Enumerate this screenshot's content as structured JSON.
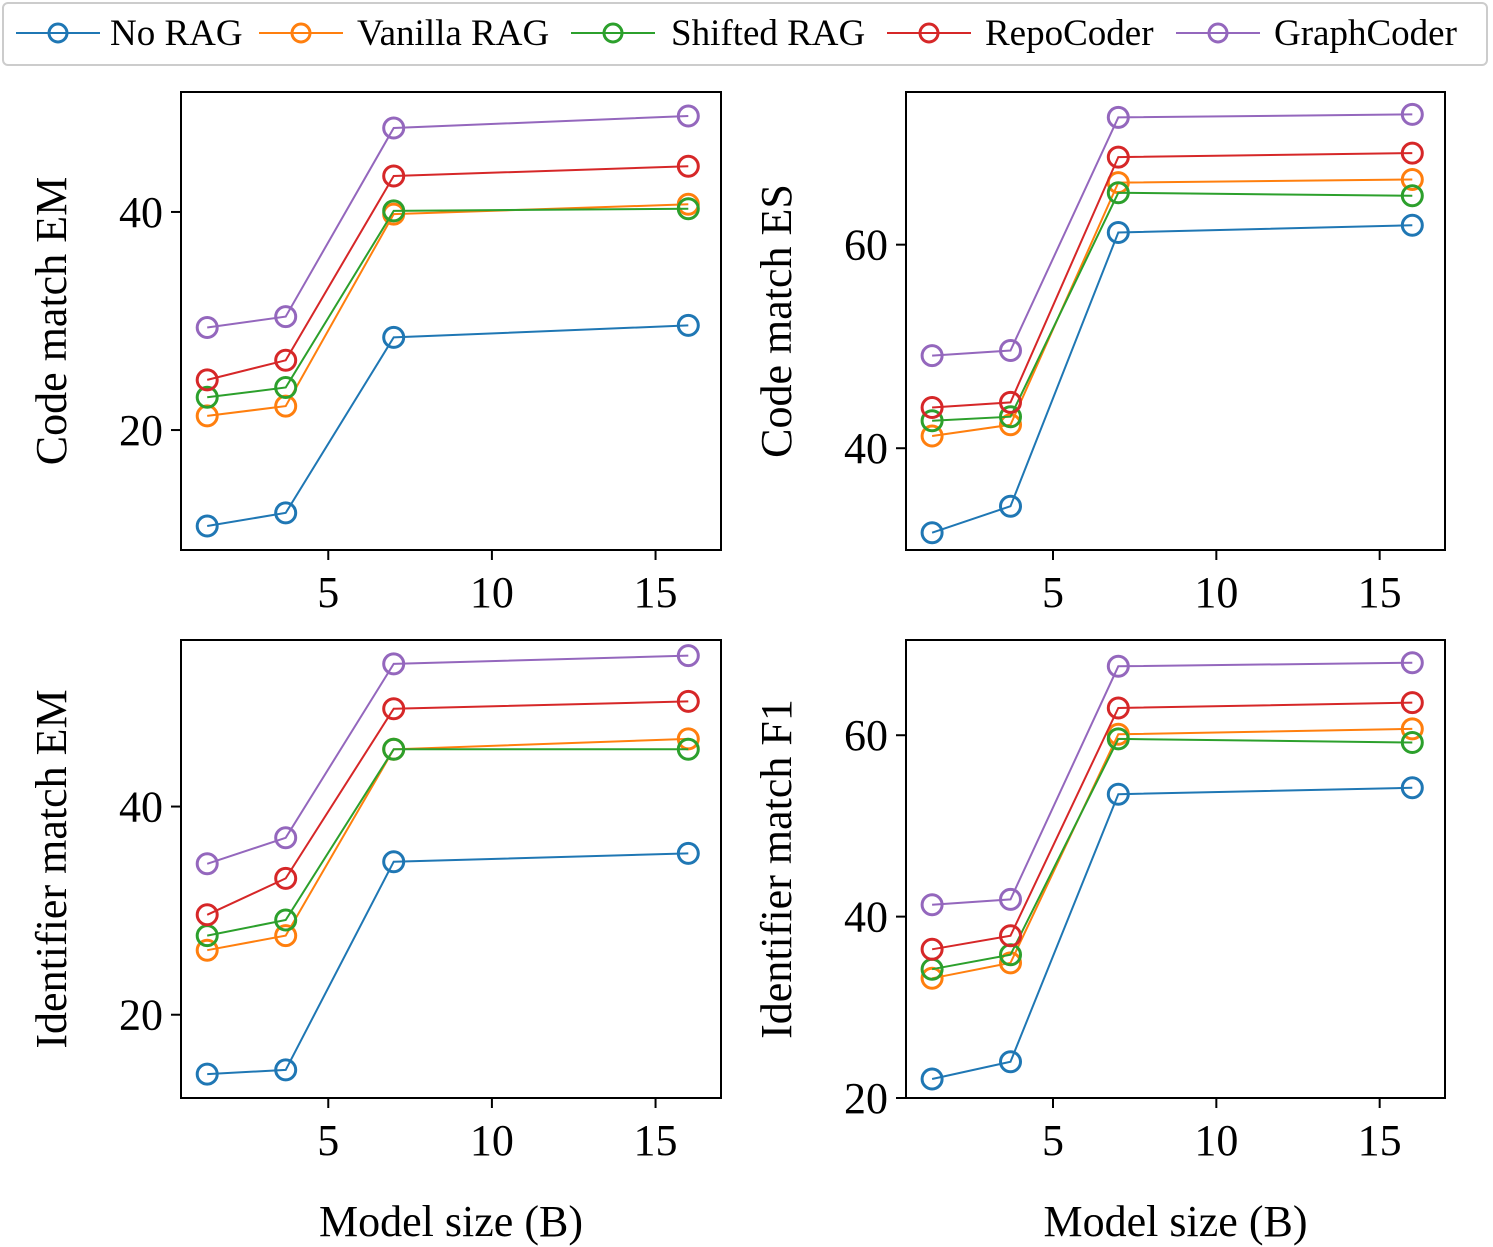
{
  "colors": {
    "No RAG": "#1f77b4",
    "Vanilla RAG": "#ff7f0e",
    "Shifted RAG": "#2ca02c",
    "RepoCoder": "#d62728",
    "GraphCoder": "#9467bd"
  },
  "legend": {
    "placement": "top",
    "entries": [
      "No RAG",
      "Vanilla RAG",
      "Shifted RAG",
      "RepoCoder",
      "GraphCoder"
    ]
  },
  "chart_data": [
    {
      "type": "line",
      "title": "",
      "xlabel": "",
      "ylabel": "Code match EM",
      "x": [
        1.3,
        3.7,
        7,
        16
      ],
      "xlim": [
        0.5,
        17
      ],
      "ylim": [
        9,
        51
      ],
      "xticks": [
        5,
        10,
        15
      ],
      "yticks": [
        20,
        40
      ],
      "series": [
        {
          "name": "No RAG",
          "values": [
            11.2,
            12.4,
            28.5,
            29.6
          ]
        },
        {
          "name": "Vanilla RAG",
          "values": [
            21.3,
            22.2,
            39.8,
            40.7
          ]
        },
        {
          "name": "Shifted RAG",
          "values": [
            23.0,
            23.9,
            40.1,
            40.3
          ]
        },
        {
          "name": "RepoCoder",
          "values": [
            24.6,
            26.4,
            43.3,
            44.2
          ]
        },
        {
          "name": "GraphCoder",
          "values": [
            29.4,
            30.4,
            47.7,
            48.8
          ]
        }
      ]
    },
    {
      "type": "line",
      "title": "",
      "xlabel": "",
      "ylabel": "Code match ES",
      "x": [
        1.3,
        3.7,
        7,
        16
      ],
      "xlim": [
        0.5,
        17
      ],
      "ylim": [
        30,
        75
      ],
      "xticks": [
        5,
        10,
        15
      ],
      "yticks": [
        40,
        60
      ],
      "series": [
        {
          "name": "No RAG",
          "values": [
            31.7,
            34.3,
            61.2,
            61.9
          ]
        },
        {
          "name": "Vanilla RAG",
          "values": [
            41.2,
            42.3,
            66.1,
            66.4
          ]
        },
        {
          "name": "Shifted RAG",
          "values": [
            42.7,
            43.1,
            65.1,
            64.8
          ]
        },
        {
          "name": "RepoCoder",
          "values": [
            44.0,
            44.5,
            68.6,
            69.0
          ]
        },
        {
          "name": "GraphCoder",
          "values": [
            49.1,
            49.6,
            72.5,
            72.8
          ]
        }
      ]
    },
    {
      "type": "line",
      "title": "",
      "xlabel": "Model size (B)",
      "ylabel": "Identifier match EM",
      "x": [
        1.3,
        3.7,
        7,
        16
      ],
      "xlim": [
        0.5,
        17
      ],
      "ylim": [
        12,
        56
      ],
      "xticks": [
        5,
        10,
        15
      ],
      "yticks": [
        20,
        40
      ],
      "series": [
        {
          "name": "No RAG",
          "values": [
            14.3,
            14.7,
            34.7,
            35.5
          ]
        },
        {
          "name": "Vanilla RAG",
          "values": [
            26.2,
            27.6,
            45.5,
            46.5
          ]
        },
        {
          "name": "Shifted RAG",
          "values": [
            27.6,
            29.1,
            45.5,
            45.5
          ]
        },
        {
          "name": "RepoCoder",
          "values": [
            29.6,
            33.1,
            49.4,
            50.1
          ]
        },
        {
          "name": "GraphCoder",
          "values": [
            34.5,
            37.0,
            53.7,
            54.5
          ]
        }
      ]
    },
    {
      "type": "line",
      "title": "",
      "xlabel": "Model size (B)",
      "ylabel": "Identifier match F1",
      "x": [
        1.3,
        3.7,
        7,
        16
      ],
      "xlim": [
        0.5,
        17
      ],
      "ylim": [
        20,
        70.5
      ],
      "xticks": [
        5,
        10,
        15
      ],
      "yticks": [
        20,
        40,
        60
      ],
      "series": [
        {
          "name": "No RAG",
          "values": [
            22.1,
            24.0,
            53.5,
            54.2
          ]
        },
        {
          "name": "Vanilla RAG",
          "values": [
            33.2,
            34.9,
            60.1,
            60.7
          ]
        },
        {
          "name": "Shifted RAG",
          "values": [
            34.2,
            35.8,
            59.6,
            59.2
          ]
        },
        {
          "name": "RepoCoder",
          "values": [
            36.4,
            37.9,
            63.0,
            63.6
          ]
        },
        {
          "name": "GraphCoder",
          "values": [
            41.3,
            41.9,
            67.6,
            68.0
          ]
        }
      ]
    }
  ]
}
